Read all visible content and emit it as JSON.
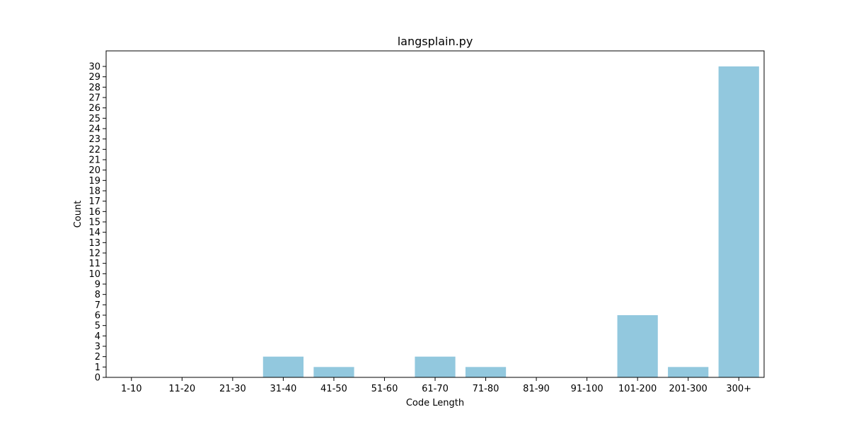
{
  "chart_data": {
    "type": "bar",
    "title": "langsplain.py",
    "xlabel": "Code Length",
    "ylabel": "Count",
    "categories": [
      "1-10",
      "11-20",
      "21-30",
      "31-40",
      "41-50",
      "51-60",
      "61-70",
      "71-80",
      "81-90",
      "91-100",
      "101-200",
      "201-300",
      "300+"
    ],
    "values": [
      0,
      0,
      0,
      2,
      1,
      0,
      2,
      1,
      0,
      0,
      6,
      1,
      30
    ],
    "ylim": [
      0,
      31.5
    ],
    "yticks": [
      0,
      1,
      2,
      3,
      4,
      5,
      6,
      7,
      8,
      9,
      10,
      11,
      12,
      13,
      14,
      15,
      16,
      17,
      18,
      19,
      20,
      21,
      22,
      23,
      24,
      25,
      26,
      27,
      28,
      29,
      30
    ],
    "grid": false,
    "bar_color": "#92c8de"
  }
}
